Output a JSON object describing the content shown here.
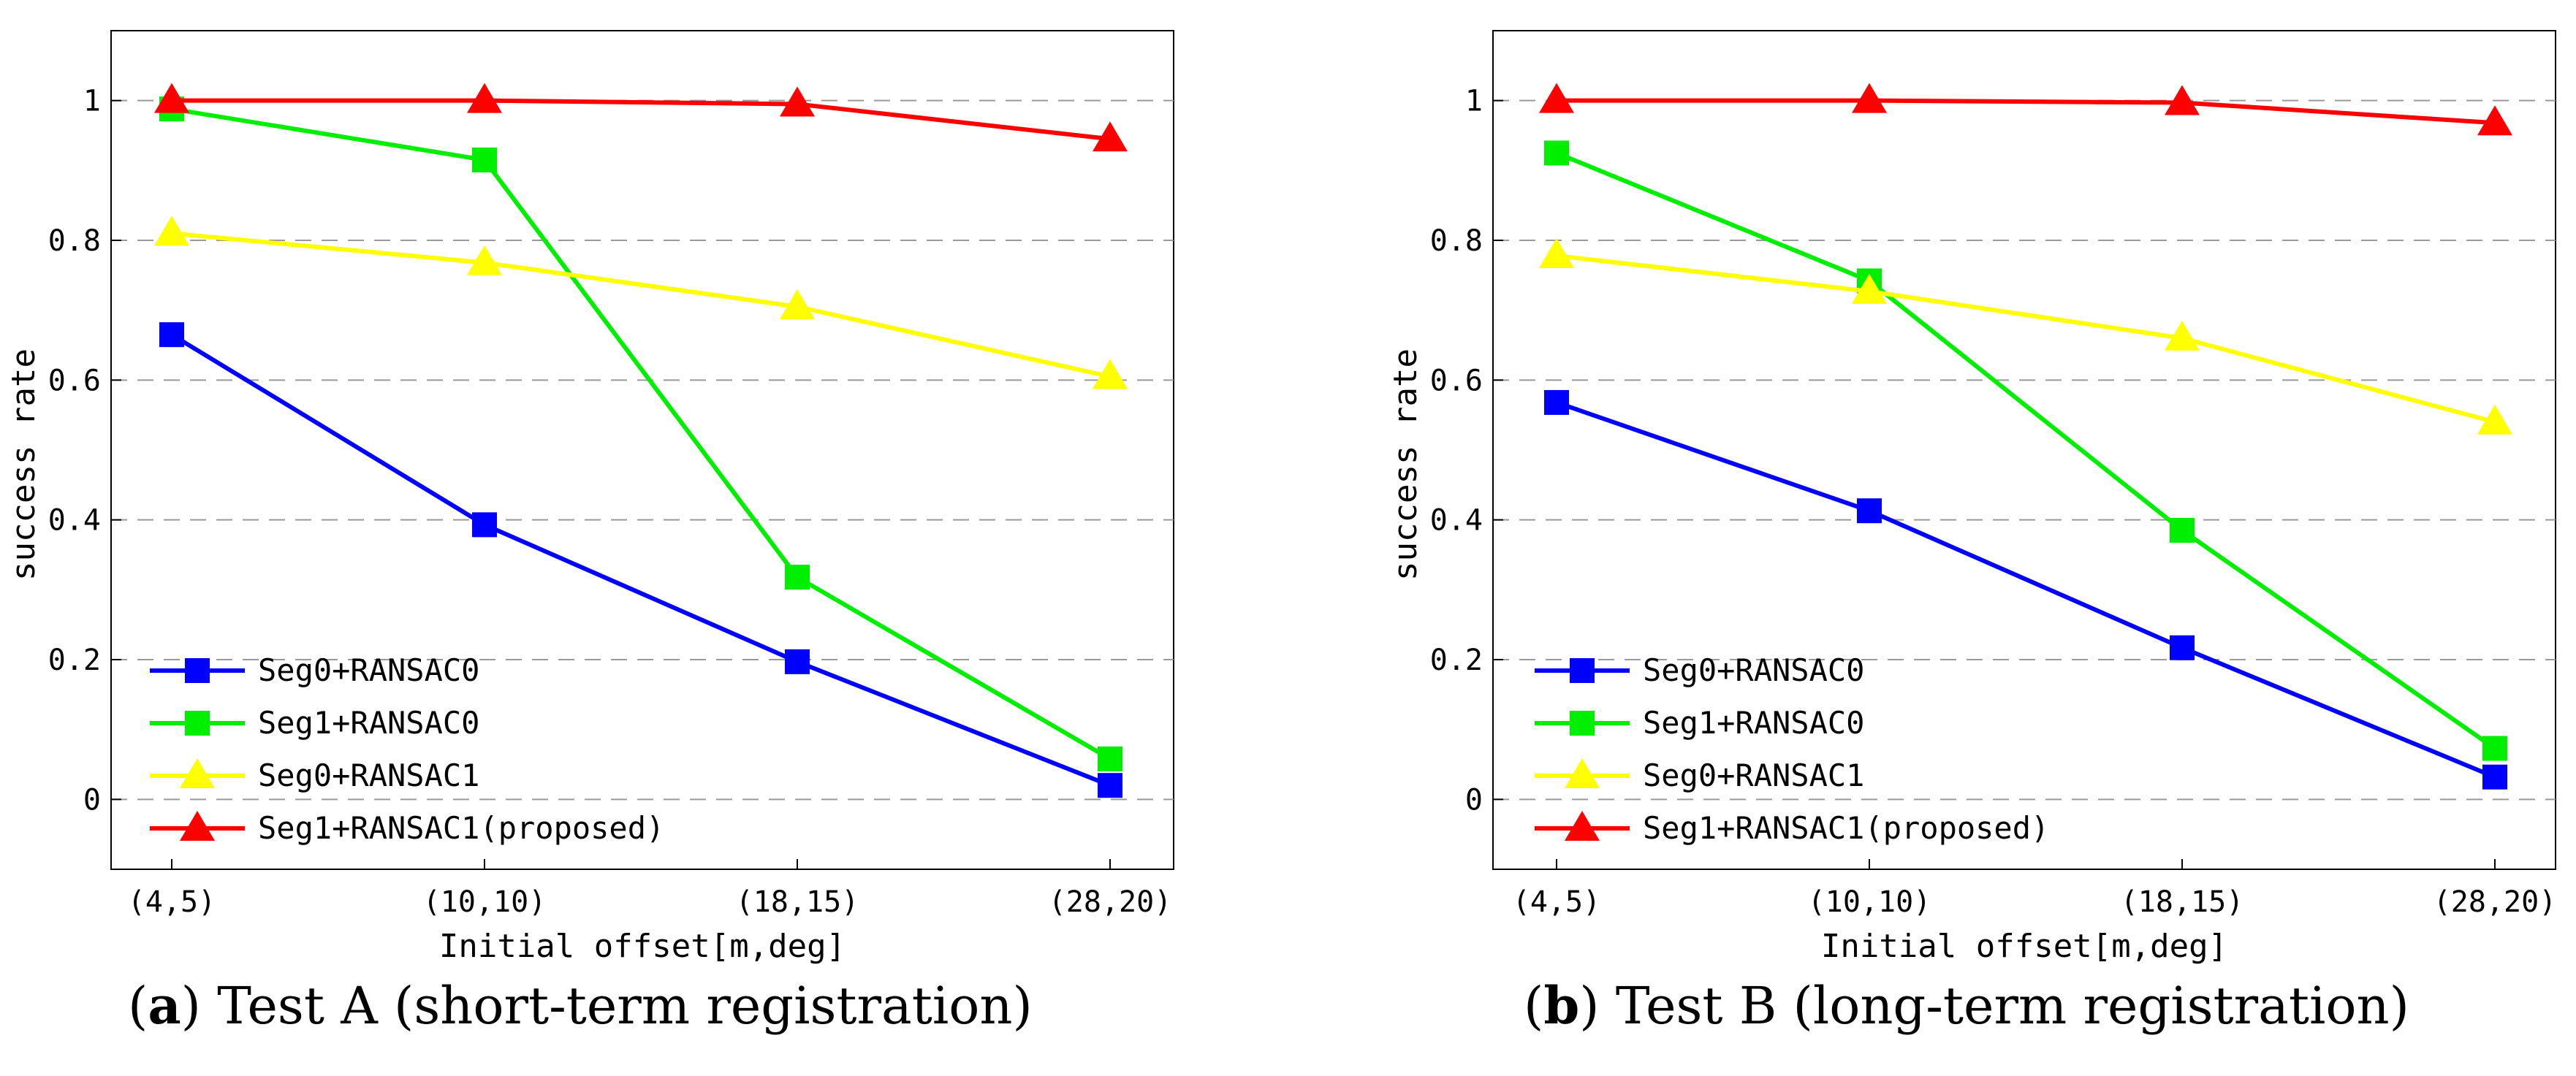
{
  "chart_data": [
    {
      "type": "line",
      "caption_letter": "a",
      "caption_text": "Test A (short-term registration)",
      "xlabel": "Initial offset[m,deg]",
      "ylabel": "success rate",
      "categories": [
        "(4,5)",
        "(10,10)",
        "(18,15)",
        "(28,20)"
      ],
      "ylim": [
        -0.1,
        1.1
      ],
      "yticks": [
        "0",
        "0.2",
        "0.4",
        "0.6",
        "0.8",
        "1"
      ],
      "grid": "horizontal dashed",
      "legend_position": "bottom-left",
      "series": [
        {
          "name": "Seg0+RANSAC0",
          "marker": "square",
          "color": "#0000ff",
          "values": [
            0.665,
            0.393,
            0.197,
            0.02
          ]
        },
        {
          "name": "Seg1+RANSAC0",
          "marker": "square",
          "color": "#00ee00",
          "values": [
            0.988,
            0.915,
            0.318,
            0.058
          ]
        },
        {
          "name": "Seg0+RANSAC1",
          "marker": "triangle",
          "color": "#ffff00",
          "values": [
            0.81,
            0.768,
            0.705,
            0.605
          ]
        },
        {
          "name": "Seg1+RANSAC1(proposed)",
          "marker": "triangle",
          "color": "#ff0000",
          "values": [
            1.0,
            1.0,
            0.995,
            0.945
          ]
        }
      ]
    },
    {
      "type": "line",
      "caption_letter": "b",
      "caption_text": "Test B (long-term registration)",
      "xlabel": "Initial offset[m,deg]",
      "ylabel": "success rate",
      "categories": [
        "(4,5)",
        "(10,10)",
        "(18,15)",
        "(28,20)"
      ],
      "ylim": [
        -0.1,
        1.1
      ],
      "yticks": [
        "0",
        "0.2",
        "0.4",
        "0.6",
        "0.8",
        "1"
      ],
      "grid": "horizontal dashed",
      "legend_position": "bottom-left",
      "series": [
        {
          "name": "Seg0+RANSAC0",
          "marker": "square",
          "color": "#0000ff",
          "values": [
            0.568,
            0.413,
            0.217,
            0.032
          ]
        },
        {
          "name": "Seg1+RANSAC0",
          "marker": "square",
          "color": "#00ee00",
          "values": [
            0.925,
            0.742,
            0.385,
            0.073
          ]
        },
        {
          "name": "Seg0+RANSAC1",
          "marker": "triangle",
          "color": "#ffff00",
          "values": [
            0.778,
            0.727,
            0.66,
            0.54
          ]
        },
        {
          "name": "Seg1+RANSAC1(proposed)",
          "marker": "triangle",
          "color": "#ff0000",
          "values": [
            1.0,
            1.0,
            0.997,
            0.968
          ]
        }
      ]
    }
  ]
}
